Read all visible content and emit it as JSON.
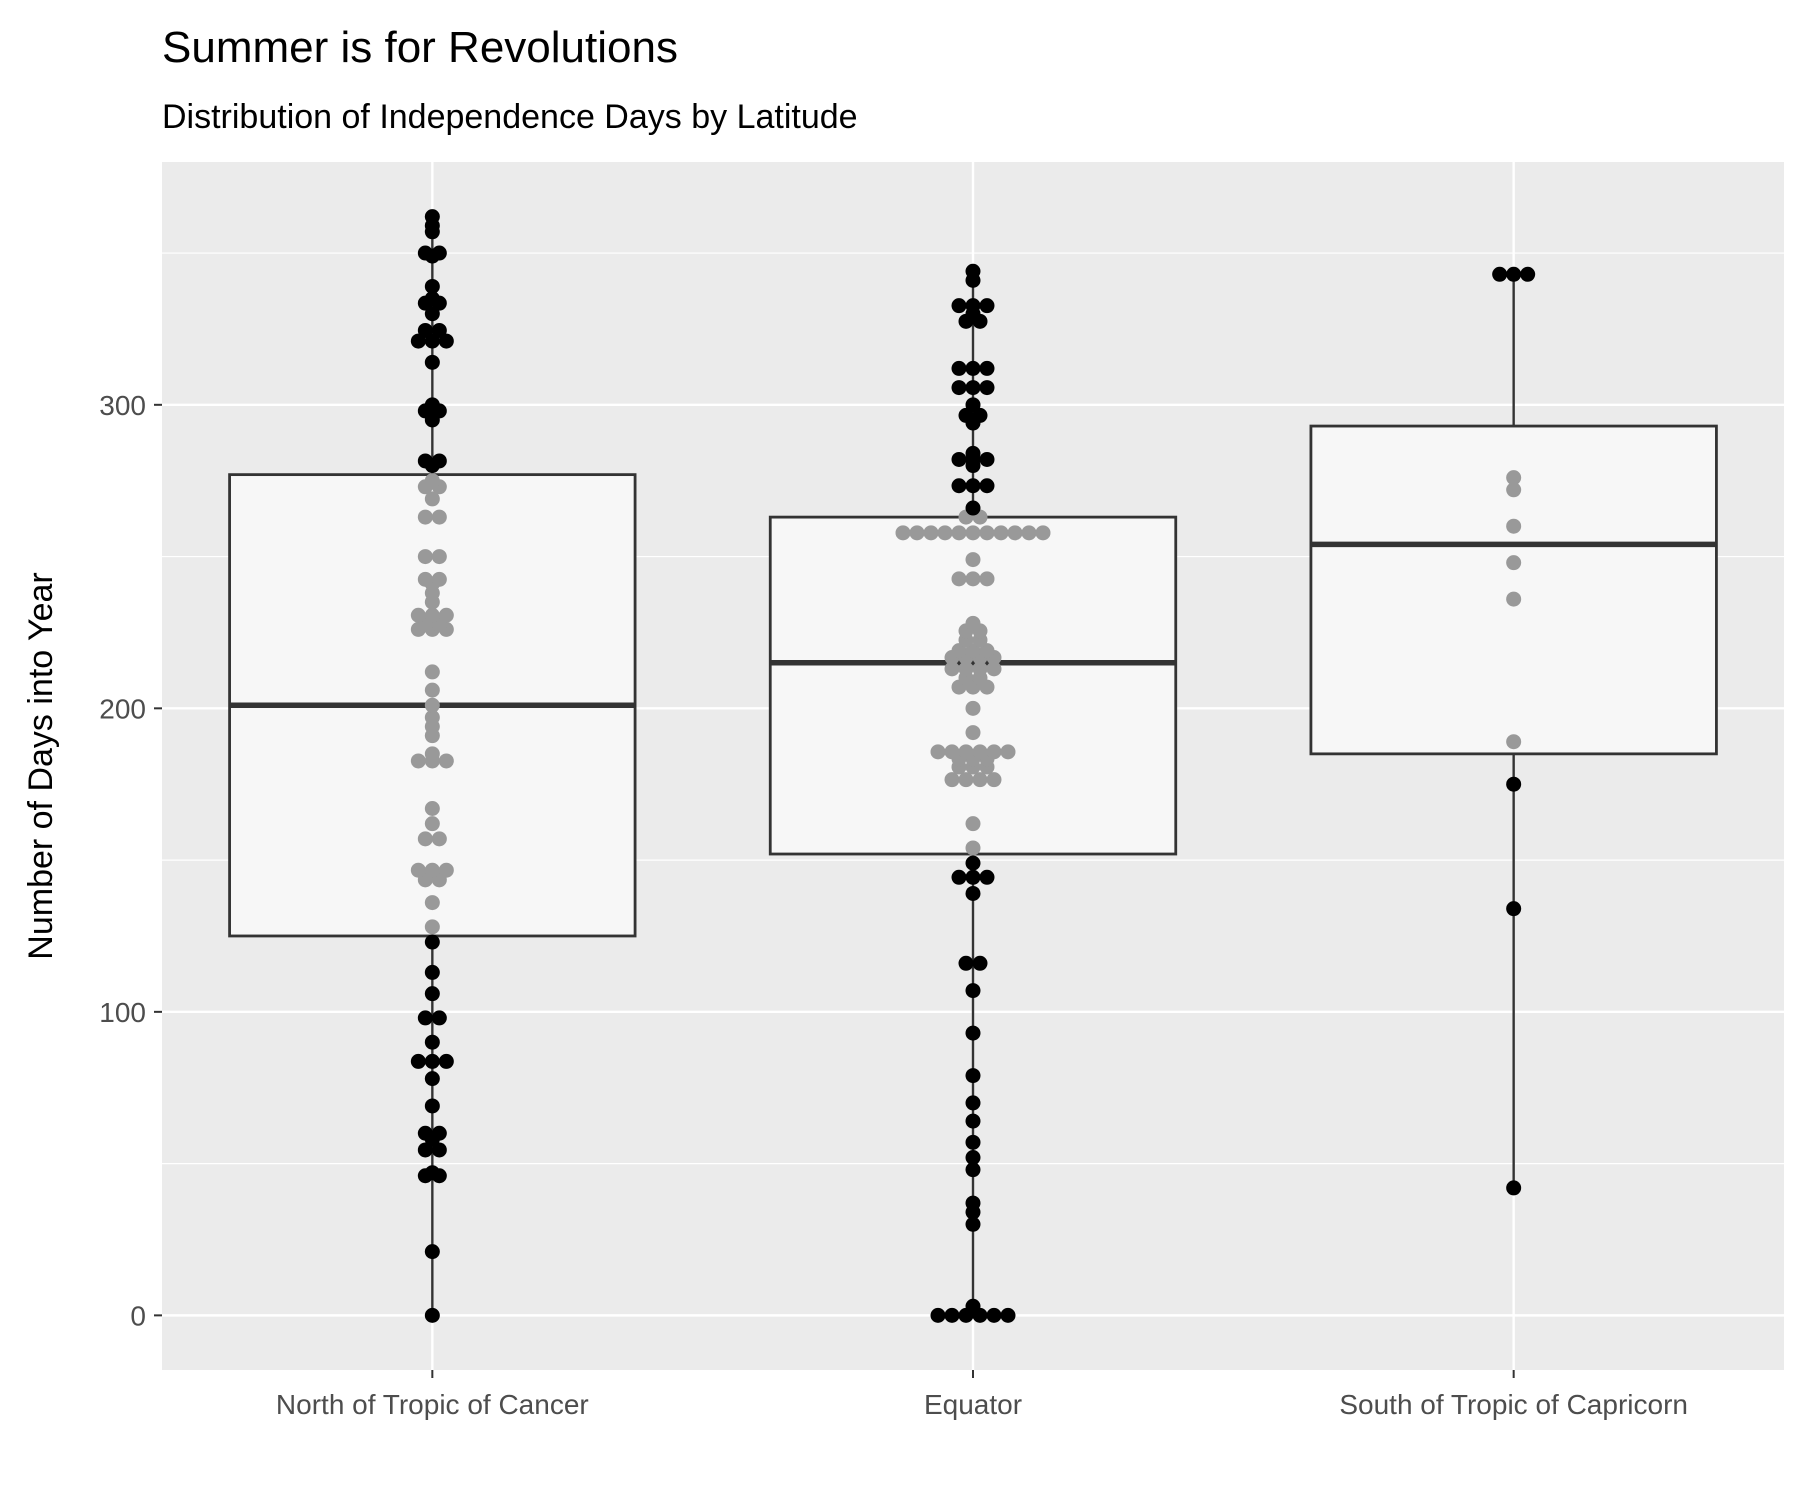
{
  "chart_data": {
    "type": "box",
    "title": "Summer is for Revolutions",
    "subtitle": "Distribution of Independence Days by Latitude",
    "xlabel": "",
    "ylabel": "Number of Days into Year",
    "ylim": [
      -18,
      380
    ],
    "yticks": [
      0,
      100,
      200,
      300
    ],
    "grid": true,
    "background": "#ebebeb",
    "colors": {
      "outer_point": "#000000",
      "inner_point": "#999999",
      "box_fill": "#f7f7f7",
      "box_line": "#333333"
    },
    "categories": [
      "North of Tropic of Cancer",
      "Equator",
      "South of Tropic of Capricorn"
    ],
    "boxes": [
      {
        "category": "North of Tropic of Cancer",
        "q1": 125,
        "median": 201,
        "q3": 277,
        "whisker_low": 0,
        "whisker_high": 362,
        "points": [
          0,
          21,
          46,
          46,
          47,
          54,
          55,
          58,
          59,
          61,
          69,
          78,
          83,
          84,
          84,
          90,
          98,
          98,
          106,
          113,
          123,
          128,
          136,
          143,
          144,
          146,
          147,
          147,
          157,
          157,
          162,
          167,
          182,
          183,
          183,
          185,
          191,
          194,
          197,
          201,
          206,
          212,
          226,
          226,
          226,
          227,
          228,
          230,
          231,
          231,
          235,
          238,
          241,
          242,
          243,
          250,
          250,
          263,
          263,
          269,
          272,
          274,
          275,
          280,
          281,
          282,
          295,
          298,
          298,
          300,
          314,
          321,
          321,
          321,
          324,
          325,
          330,
          333,
          334,
          335,
          339,
          349,
          350,
          350,
          357,
          359,
          362
        ]
      },
      {
        "category": "Equator",
        "q1": 152,
        "median": 215,
        "q3": 263,
        "whisker_low": 0,
        "whisker_high": 344,
        "points": [
          0,
          0,
          0,
          0,
          0,
          0,
          3,
          30,
          34,
          37,
          48,
          52,
          57,
          64,
          70,
          79,
          93,
          107,
          116,
          116,
          139,
          143,
          145,
          145,
          149,
          154,
          162,
          176,
          176,
          177,
          177,
          180,
          181,
          181,
          182,
          184,
          184,
          185,
          185,
          185,
          186,
          186,
          187,
          192,
          200,
          206,
          207,
          208,
          209,
          211,
          212,
          213,
          213,
          214,
          216,
          217,
          217,
          217,
          218,
          219,
          220,
          222,
          223,
          225,
          226,
          228,
          242,
          242,
          244,
          249,
          257,
          257,
          258,
          258,
          258,
          258,
          258,
          258,
          258,
          258,
          258,
          263,
          263,
          266,
          273,
          273,
          274,
          280,
          281,
          282,
          283,
          284,
          294,
          296,
          297,
          300,
          305,
          306,
          306,
          311,
          312,
          313,
          327,
          328,
          330,
          332,
          333,
          333,
          341,
          344
        ]
      },
      {
        "category": "South of Tropic of Capricorn",
        "q1": 185,
        "median": 254,
        "q3": 293,
        "whisker_low": 42,
        "whisker_high": 343,
        "points": [
          42,
          134,
          175,
          189,
          236,
          248,
          260,
          272,
          276,
          343,
          343,
          343
        ]
      }
    ]
  }
}
